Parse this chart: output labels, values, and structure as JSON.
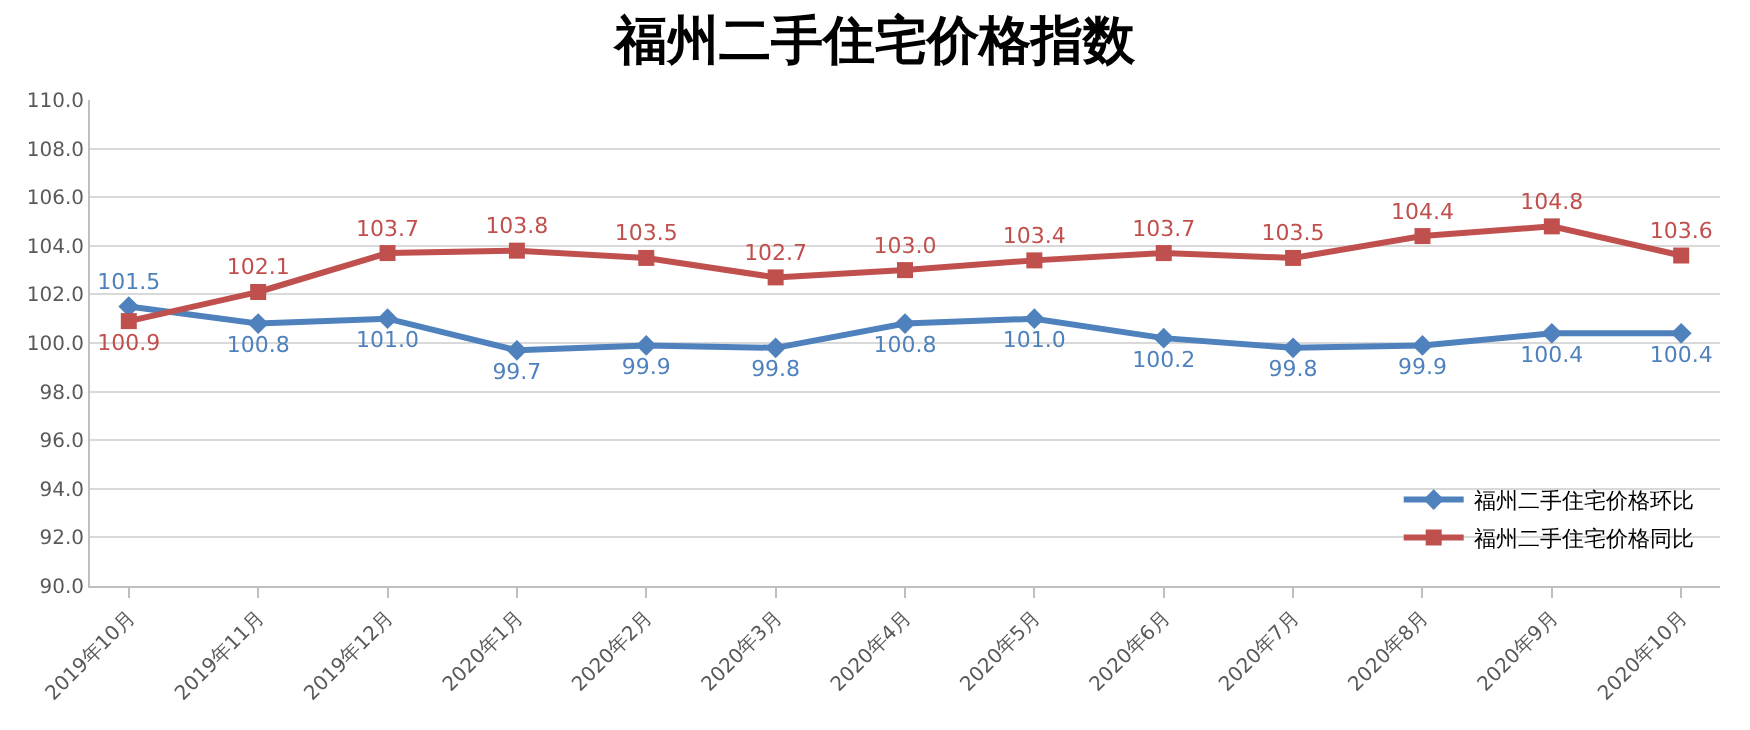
{
  "chart_data": {
    "type": "line",
    "title": "福州二手住宅价格指数",
    "categories": [
      "2019年10月",
      "2019年11月",
      "2019年12月",
      "2020年1月",
      "2020年2月",
      "2020年3月",
      "2020年4月",
      "2020年5月",
      "2020年6月",
      "2020年7月",
      "2020年8月",
      "2020年9月",
      "2020年10月"
    ],
    "series": [
      {
        "name": "福州二手住宅价格环比",
        "color": "#4f81bd",
        "marker": "diamond",
        "values": [
          101.5,
          100.8,
          101.0,
          99.7,
          99.9,
          99.8,
          100.8,
          101.0,
          100.2,
          99.8,
          99.9,
          100.4,
          100.4
        ],
        "value_labels": [
          "101.5",
          "100.8",
          "101.0",
          "99.7",
          "99.9",
          "99.8",
          "100.8",
          "101.0",
          "100.2",
          "99.8",
          "99.9",
          "100.4",
          "100.4"
        ]
      },
      {
        "name": "福州二手住宅价格同比",
        "color": "#c0504d",
        "marker": "square",
        "values": [
          100.9,
          102.1,
          103.7,
          103.8,
          103.5,
          102.7,
          103.0,
          103.4,
          103.7,
          103.5,
          104.4,
          104.8,
          103.6
        ],
        "value_labels": [
          "100.9",
          "102.1",
          "103.7",
          "103.8",
          "103.5",
          "102.7",
          "103.0",
          "103.4",
          "103.7",
          "103.5",
          "104.4",
          "104.8",
          "103.6"
        ]
      }
    ],
    "ylim": [
      90,
      110
    ],
    "yticks": [
      {
        "value": 90,
        "label": "90.0"
      },
      {
        "value": 92,
        "label": "92.0"
      },
      {
        "value": 94,
        "label": "94.0"
      },
      {
        "value": 96,
        "label": "96.0"
      },
      {
        "value": 98,
        "label": "98.0"
      },
      {
        "value": 100,
        "label": "100.0"
      },
      {
        "value": 102,
        "label": "102.0"
      },
      {
        "value": 104,
        "label": "104.0"
      },
      {
        "value": 106,
        "label": "106.0"
      },
      {
        "value": 108,
        "label": "108.0"
      },
      {
        "value": 110,
        "label": "110.0"
      }
    ],
    "grid": "y",
    "legend": "bottom right",
    "line_style": "solid"
  }
}
